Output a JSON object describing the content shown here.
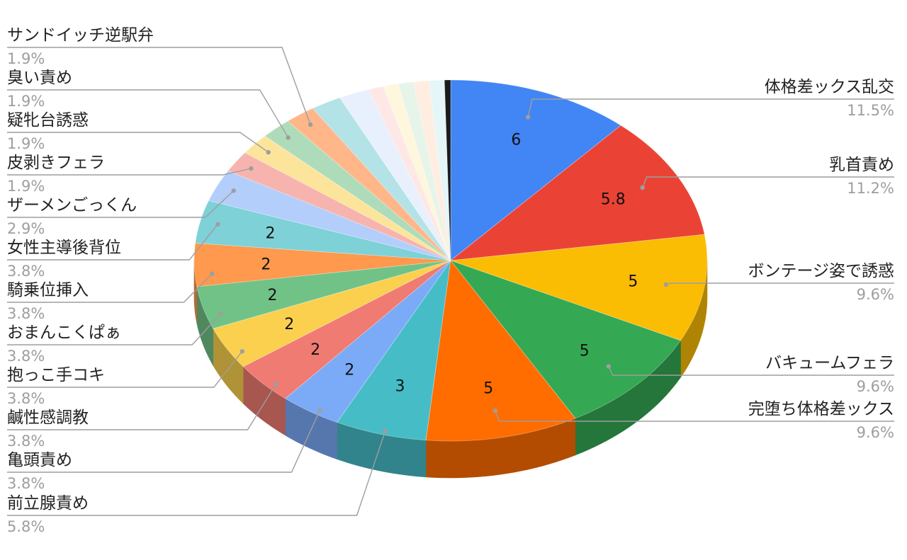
{
  "chart_data": {
    "type": "pie",
    "style": "3d",
    "title": "",
    "legend": "none",
    "slices": [
      {
        "label": "体格差ックス乱交",
        "value": 6,
        "percent": "11.5%",
        "value_label": "6",
        "color": "#4285F4"
      },
      {
        "label": "乳首責め",
        "value": 5.8,
        "percent": "11.2%",
        "value_label": "5.8",
        "color": "#EA4335"
      },
      {
        "label": "ボンテージ姿で誘惑",
        "value": 5,
        "percent": "9.6%",
        "value_label": "5",
        "color": "#FBBC04"
      },
      {
        "label": "バキュームフェラ",
        "value": 5,
        "percent": "9.6%",
        "value_label": "5",
        "color": "#34A853"
      },
      {
        "label": "完堕ち体格差ックス",
        "value": 5,
        "percent": "9.6%",
        "value_label": "5",
        "color": "#FF6D01"
      },
      {
        "label": "前立腺責め",
        "value": 3,
        "percent": "5.8%",
        "value_label": "3",
        "color": "#46BDC6"
      },
      {
        "label": "亀頭責め",
        "value": 2,
        "percent": "3.8%",
        "value_label": "2",
        "color": "#7BAAF7"
      },
      {
        "label": "鹹性感調教",
        "value": 2,
        "percent": "3.8%",
        "value_label": "2",
        "color": "#F07B72"
      },
      {
        "label": "抱っこ手コキ",
        "value": 2,
        "percent": "3.8%",
        "value_label": "2",
        "color": "#FCD04F"
      },
      {
        "label": "おまんこくぱぁ",
        "value": 2,
        "percent": "3.8%",
        "value_label": "2",
        "color": "#71C287"
      },
      {
        "label": "騎乗位挿入",
        "value": 2,
        "percent": "3.8%",
        "value_label": "2",
        "color": "#FF994D"
      },
      {
        "label": "女性主導後背位",
        "value": 2,
        "percent": "3.8%",
        "value_label": "2",
        "color": "#7ED1D7"
      },
      {
        "label": "ザーメンごっくん",
        "value": 1.5,
        "percent": "2.9%",
        "value_label": "",
        "color": "#B3CEFB"
      },
      {
        "label": "皮剥きフェラ",
        "value": 1,
        "percent": "1.9%",
        "value_label": "",
        "color": "#F7B4AE"
      },
      {
        "label": "疑牝台誘惑",
        "value": 1,
        "percent": "1.9%",
        "value_label": "",
        "color": "#FDE49B"
      },
      {
        "label": "臭い責め",
        "value": 1,
        "percent": "1.9%",
        "value_label": "",
        "color": "#AEDCBA"
      },
      {
        "label": "サンドイッチ逆駅弁",
        "value": 1,
        "percent": "1.9%",
        "value_label": "",
        "color": "#FFB78A"
      },
      {
        "label": "",
        "value": 1,
        "percent": "",
        "value_label": "",
        "color": "#B3E3E6"
      },
      {
        "label": "",
        "value": 1,
        "percent": "",
        "value_label": "",
        "color": "#E8F0FE"
      },
      {
        "label": "",
        "value": 0.5,
        "percent": "",
        "value_label": "",
        "color": "#FDE8E6"
      },
      {
        "label": "",
        "value": 0.5,
        "percent": "",
        "value_label": "",
        "color": "#FEF6DD"
      },
      {
        "label": "",
        "value": 0.5,
        "percent": "",
        "value_label": "",
        "color": "#E6F4EA"
      },
      {
        "label": "",
        "value": 0.5,
        "percent": "",
        "value_label": "",
        "color": "#FFEDE1"
      },
      {
        "label": "",
        "value": 0.5,
        "percent": "",
        "value_label": "",
        "color": "#E4F6F7"
      },
      {
        "label": "",
        "value": 0.2,
        "percent": "",
        "value_label": "",
        "color": "#1A1A1A"
      }
    ]
  }
}
